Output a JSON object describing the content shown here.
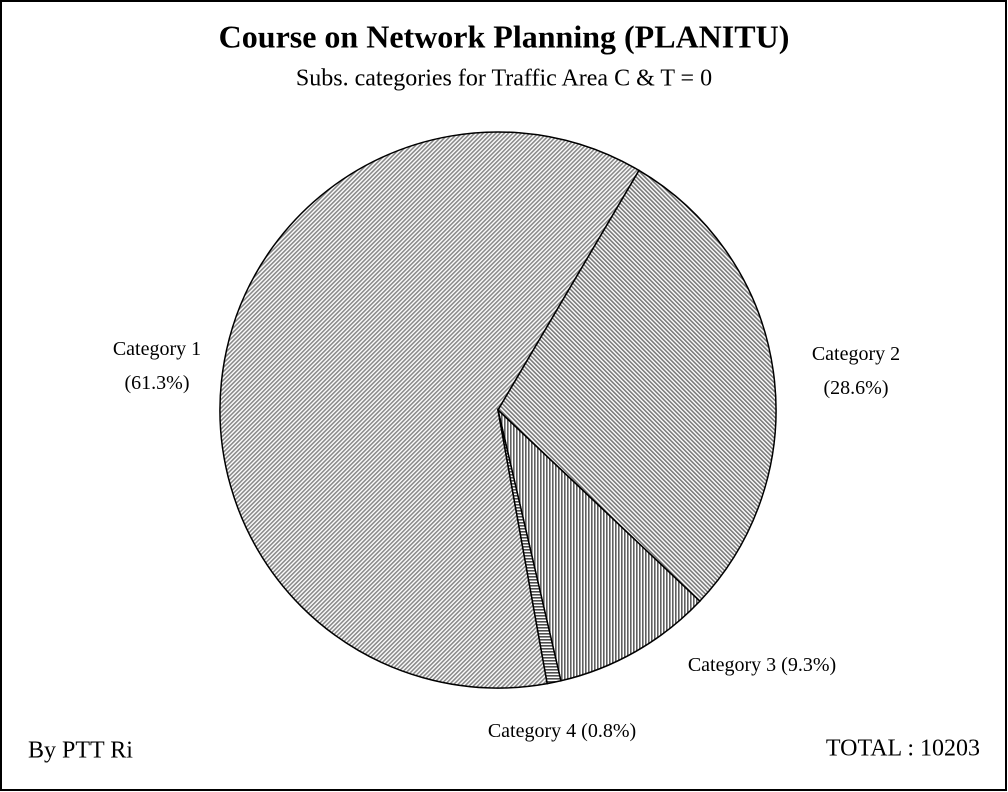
{
  "chart_data": {
    "type": "pie",
    "title": "Course on Network Planning (PLANITU)",
    "subtitle": "Subs. categories for Traffic Area C & T = 0",
    "categories": [
      "Category 1",
      "Category 2",
      "Category 3",
      "Category 4"
    ],
    "values": [
      61.3,
      28.6,
      9.3,
      0.8
    ],
    "value_labels": [
      "(61.3%)",
      "(28.6%)",
      "(9.3%)",
      "(0.8%)"
    ],
    "colors": [
      "#8a8a8a",
      "#7a7a7a",
      "#606060",
      "#505050"
    ],
    "annotations": [
      "By PTT Ri",
      "TOTAL : 10203"
    ]
  }
}
